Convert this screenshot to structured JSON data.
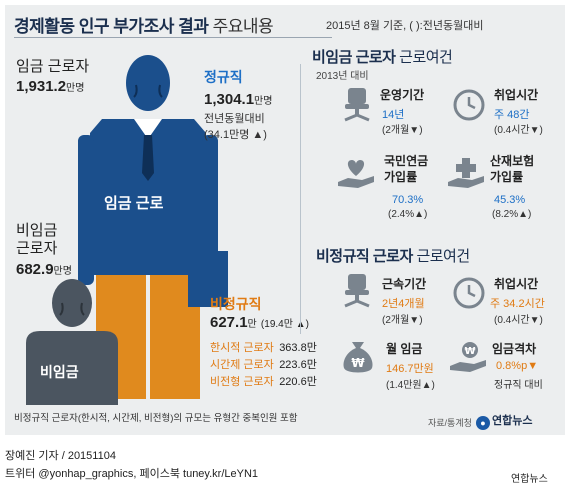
{
  "header": {
    "title_bold": "경제활동 인구 부가조사 결과",
    "title_light": "주요내용",
    "base_note": "2015년 8월 기준, ( ):전년동월대비"
  },
  "wage_worker": {
    "label": "임금 근로자",
    "value": "1,931.2",
    "unit": "만명",
    "torso_label": "임금 근로"
  },
  "regular": {
    "label": "정규직",
    "value": "1,304.1",
    "unit": "만명",
    "change_label": "전년동월대비",
    "change": "(34.1만명 ▲)"
  },
  "non_wage": {
    "label_line1": "비임금",
    "label_line2": "근로자",
    "value": "682.9",
    "unit": "만명",
    "body_label": "비임금"
  },
  "irregular": {
    "label": "비정규직",
    "value": "627.1",
    "unit": "만",
    "change": "(19.4만 ▲)",
    "breakdown": [
      {
        "name": "한시적 근로자",
        "value": "363.8만"
      },
      {
        "name": "시간제 근로자",
        "value": "223.6만"
      },
      {
        "name": "비전형 근로자",
        "value": "220.6만"
      }
    ]
  },
  "nonwage_conditions": {
    "title_bold": "비임금 근로자",
    "title_light": "근로여건",
    "subtitle": "2013년 대비",
    "items": [
      {
        "icon": "office-chair-icon",
        "label": "운영기간",
        "value": "14년",
        "change": "(2개월▼)"
      },
      {
        "icon": "clock-icon",
        "label": "취업시간",
        "value": "주 48간",
        "change": "(0.4시간▼)"
      },
      {
        "icon": "hand-heart-icon",
        "label_line1": "국민연금",
        "label_line2": "가입률",
        "value": "70.3%",
        "change": "(2.4%▲)"
      },
      {
        "icon": "hand-cross-icon",
        "label_line1": "산재보험",
        "label_line2": "가입률",
        "value": "45.3%",
        "change": "(8.2%▲)"
      }
    ]
  },
  "irregular_conditions": {
    "title_bold": "비정규직 근로자",
    "title_light": "근로여건",
    "items": [
      {
        "icon": "office-chair-icon",
        "label": "근속기간",
        "value": "2년4개월",
        "change": "(2개월▼)"
      },
      {
        "icon": "clock-icon",
        "label": "취업시간",
        "value": "주 34.2시간",
        "change": "(0.4시간▼)"
      },
      {
        "icon": "money-bag-icon",
        "label": "월 임금",
        "value": "146.7만원",
        "change": "(1.4만원▲)"
      },
      {
        "icon": "hand-coin-icon",
        "label": "임금격차",
        "value": "0.8%p▼",
        "change": "정규직 대비"
      }
    ]
  },
  "footnote": "비정규직 근로자(한시적, 시간제, 비전형)의 규모는 유형간 중복인원 포함",
  "source": "자료/통계청",
  "logo_text": "연합뉴스",
  "credit_line1": "장예진 기자 / 20151104",
  "credit_line2": "트위터 @yonhap_graphics, 페이스북 tuney.kr/LeYN1",
  "agency": "연합뉴스",
  "colors": {
    "navy": "#1b4f8c",
    "orange": "#e08a1e",
    "gray_person": "#4b5560",
    "blue_text": "#1d6fc6",
    "orange_text": "#e07b14",
    "panel_bg": "#eceeef"
  }
}
